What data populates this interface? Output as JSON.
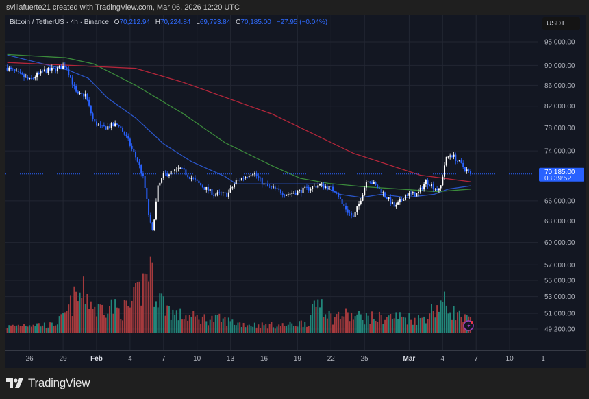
{
  "header": {
    "credit": "svillafuerte21 created with TradingView.com, Mar 06, 2026 12:20 UTC"
  },
  "legend": {
    "symbol": "Bitcoin / TetherUS · 4h · Binance",
    "open_label": "O",
    "open": "70,212.94",
    "high_label": "H",
    "high": "70,224.84",
    "low_label": "L",
    "low": "69,793.84",
    "close_label": "C",
    "close": "70,185.00",
    "change": "−27.95 (−0.04%)"
  },
  "price_axis": {
    "currency": "USDT",
    "last_price": "70,185.00",
    "countdown": "03:39:52"
  },
  "footer": {
    "brand": "TradingView"
  },
  "colors": {
    "up": "#ffffff",
    "down": "#2962ff",
    "vol_up": "#22867a",
    "vol_down": "#a53a3d",
    "ma_blue": "#2a55c8",
    "ma_green": "#3b8a3b",
    "ma_red": "#b3263a",
    "accent": "#2962ff"
  },
  "icons": {
    "alert": "lightning-icon"
  },
  "chart_data": {
    "type": "candlestick",
    "interval": "4h",
    "yscale": "log",
    "ylim": [
      48800,
      97000
    ],
    "xlim": [
      "2026-01-23T22:00",
      "2026-03-14T00:00"
    ],
    "grid": true,
    "y_ticks": [
      "95,000.00",
      "90,000.00",
      "86,000.00",
      "82,000.00",
      "78,000.00",
      "74,000.00",
      "66,000.00",
      "63,000.00",
      "60,000.00",
      "57,000.00",
      "55,000.00",
      "53,000.00",
      "51,000.00",
      "49,200.00"
    ],
    "y_tick_values": [
      95000,
      90000,
      86000,
      82000,
      78000,
      74000,
      66000,
      63000,
      60000,
      57000,
      55000,
      53000,
      51000,
      49200
    ],
    "x_ticks": [
      {
        "label": "26",
        "date": "2026-01-26"
      },
      {
        "label": "29",
        "date": "2026-01-29"
      },
      {
        "label": "Feb",
        "date": "2026-02-01",
        "bold": true
      },
      {
        "label": "4",
        "date": "2026-02-04"
      },
      {
        "label": "7",
        "date": "2026-02-07"
      },
      {
        "label": "10",
        "date": "2026-02-10"
      },
      {
        "label": "13",
        "date": "2026-02-13"
      },
      {
        "label": "16",
        "date": "2026-02-16"
      },
      {
        "label": "19",
        "date": "2026-02-19"
      },
      {
        "label": "22",
        "date": "2026-02-22"
      },
      {
        "label": "25",
        "date": "2026-02-25"
      },
      {
        "label": "Mar",
        "date": "2026-03-01",
        "bold": true
      },
      {
        "label": "4",
        "date": "2026-03-04"
      },
      {
        "label": "7",
        "date": "2026-03-07"
      },
      {
        "label": "10",
        "date": "2026-03-10"
      },
      {
        "label": "1",
        "date": "2026-03-13"
      }
    ],
    "price_path": [
      [
        "2026-01-24T00:00",
        89500
      ],
      [
        "2026-01-26T00:00",
        87000
      ],
      [
        "2026-01-27T06:00",
        88800
      ],
      [
        "2026-01-28T12:00",
        89300
      ],
      [
        "2026-01-29T06:00",
        90000
      ],
      [
        "2026-01-29T18:00",
        87000
      ],
      [
        "2026-01-30T06:00",
        84000
      ],
      [
        "2026-01-31T00:00",
        84200
      ],
      [
        "2026-01-31T18:00",
        79000
      ],
      [
        "2026-02-01T12:00",
        78000
      ],
      [
        "2026-02-03T00:00",
        78600
      ],
      [
        "2026-02-03T18:00",
        76000
      ],
      [
        "2026-02-04T18:00",
        72000
      ],
      [
        "2026-02-05T06:00",
        69000
      ],
      [
        "2026-02-05T18:00",
        63000
      ],
      [
        "2026-02-06T00:00",
        61500
      ],
      [
        "2026-02-06T12:00",
        68000
      ],
      [
        "2026-02-07T00:00",
        70000
      ],
      [
        "2026-02-08T12:00",
        71000
      ],
      [
        "2026-02-10T06:00",
        68500
      ],
      [
        "2026-02-11T12:00",
        67000
      ],
      [
        "2026-02-12T18:00",
        67000
      ],
      [
        "2026-02-13T12:00",
        69000
      ],
      [
        "2026-02-15T00:00",
        70500
      ],
      [
        "2026-02-16T00:00",
        68500
      ],
      [
        "2026-02-18T00:00",
        67000
      ],
      [
        "2026-02-19T06:00",
        67500
      ],
      [
        "2026-02-21T00:00",
        68500
      ],
      [
        "2026-02-22T12:00",
        67500
      ],
      [
        "2026-02-23T00:00",
        65500
      ],
      [
        "2026-02-24T00:00",
        63500
      ],
      [
        "2026-02-24T12:00",
        65500
      ],
      [
        "2026-02-25T06:00",
        69500
      ],
      [
        "2026-02-26T12:00",
        67500
      ],
      [
        "2026-02-27T18:00",
        65000
      ],
      [
        "2026-02-28T18:00",
        67000
      ],
      [
        "2026-03-01T18:00",
        67000
      ],
      [
        "2026-03-02T12:00",
        69000
      ],
      [
        "2026-03-03T18:00",
        67500
      ],
      [
        "2026-03-04T06:00",
        72500
      ],
      [
        "2026-03-04T18:00",
        73500
      ],
      [
        "2026-03-05T18:00",
        71500
      ],
      [
        "2026-03-06T12:00",
        70185
      ]
    ],
    "moving_averages": [
      {
        "color": "#2a55c8",
        "points": [
          [
            "2026-01-24T00:00",
            92200
          ],
          [
            "2026-01-27T18:00",
            90000
          ],
          [
            "2026-01-29T12:00",
            89000
          ],
          [
            "2026-01-31T06:00",
            87400
          ],
          [
            "2026-02-02T00:00",
            83500
          ],
          [
            "2026-02-04T12:00",
            79800
          ],
          [
            "2026-02-07T00:00",
            75200
          ],
          [
            "2026-02-09T12:00",
            72200
          ],
          [
            "2026-02-12T12:00",
            69800
          ],
          [
            "2026-02-13T12:00",
            68600
          ],
          [
            "2026-02-21T00:00",
            68600
          ],
          [
            "2026-02-22T18:00",
            67000
          ],
          [
            "2026-02-24T18:00",
            66500
          ],
          [
            "2026-02-26T12:00",
            67000
          ],
          [
            "2026-02-28T18:00",
            66500
          ],
          [
            "2026-03-03T06:00",
            67000
          ],
          [
            "2026-03-04T12:00",
            67800
          ],
          [
            "2026-03-06T12:00",
            68300
          ]
        ]
      },
      {
        "color": "#3b8a3b",
        "points": [
          [
            "2026-01-24T00:00",
            92300
          ],
          [
            "2026-01-29T06:00",
            91600
          ],
          [
            "2026-01-31T18:00",
            90300
          ],
          [
            "2026-02-04T12:00",
            86000
          ],
          [
            "2026-02-08T18:00",
            80600
          ],
          [
            "2026-02-12T12:00",
            75400
          ],
          [
            "2026-02-16T18:00",
            71500
          ],
          [
            "2026-02-19T06:00",
            69500
          ],
          [
            "2026-02-21T18:00",
            68700
          ],
          [
            "2026-02-24T18:00",
            68200
          ],
          [
            "2026-03-01T00:00",
            67700
          ],
          [
            "2026-03-03T12:00",
            67400
          ],
          [
            "2026-03-06T12:00",
            67800
          ]
        ]
      },
      {
        "color": "#b3263a",
        "points": [
          [
            "2026-01-24T00:00",
            90600
          ],
          [
            "2026-02-04T12:00",
            89400
          ],
          [
            "2026-02-08T18:00",
            86600
          ],
          [
            "2026-02-16T18:00",
            80500
          ],
          [
            "2026-02-24T00:00",
            73600
          ],
          [
            "2026-03-02T00:00",
            70000
          ],
          [
            "2026-03-06T12:00",
            68950
          ]
        ]
      }
    ],
    "volume_relative": [
      [
        "2026-01-24",
        0.08
      ],
      [
        "2026-01-26",
        0.12
      ],
      [
        "2026-01-28",
        0.1
      ],
      [
        "2026-01-29",
        0.2
      ],
      [
        "2026-01-30",
        0.45
      ],
      [
        "2026-01-31",
        0.55
      ],
      [
        "2026-02-01",
        0.3
      ],
      [
        "2026-02-02",
        0.4
      ],
      [
        "2026-02-03",
        0.3
      ],
      [
        "2026-02-04",
        0.35
      ],
      [
        "2026-02-05",
        0.6
      ],
      [
        "2026-02-05T18:00",
        1.0
      ],
      [
        "2026-02-06",
        0.7
      ],
      [
        "2026-02-07",
        0.4
      ],
      [
        "2026-02-08",
        0.25
      ],
      [
        "2026-02-10",
        0.2
      ],
      [
        "2026-02-12",
        0.18
      ],
      [
        "2026-02-14",
        0.12
      ],
      [
        "2026-02-16",
        0.1
      ],
      [
        "2026-02-18",
        0.1
      ],
      [
        "2026-02-20",
        0.15
      ],
      [
        "2026-02-21",
        0.5
      ],
      [
        "2026-02-22",
        0.2
      ],
      [
        "2026-02-23",
        0.25
      ],
      [
        "2026-02-24",
        0.22
      ],
      [
        "2026-02-26",
        0.2
      ],
      [
        "2026-02-28",
        0.22
      ],
      [
        "2026-03-02",
        0.18
      ],
      [
        "2026-03-03",
        0.3
      ],
      [
        "2026-03-04",
        0.42
      ],
      [
        "2026-03-05",
        0.28
      ],
      [
        "2026-03-06",
        0.18
      ]
    ]
  }
}
